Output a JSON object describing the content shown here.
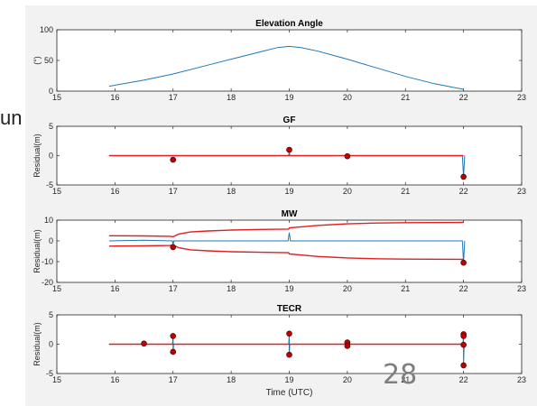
{
  "slide": {
    "side_text": "un",
    "page_number": "28"
  },
  "chart_data": [
    {
      "type": "line",
      "title": "Elevation Angle",
      "xlabel": "",
      "ylabel": "(°)",
      "xlim": [
        15,
        23
      ],
      "ylim": [
        0,
        100
      ],
      "xticks": [
        15,
        16,
        17,
        18,
        19,
        20,
        21,
        22,
        23
      ],
      "yticks": [
        0,
        50,
        100
      ],
      "grid": false,
      "series": [
        {
          "color": "#1f77b4",
          "x": [
            15.9,
            16.5,
            17,
            17.5,
            18,
            18.5,
            18.8,
            19,
            19.2,
            19.5,
            20,
            20.5,
            21,
            21.5,
            22
          ],
          "y": [
            8,
            18,
            28,
            40,
            52,
            64,
            71,
            73,
            71,
            65,
            52,
            38,
            24,
            12,
            3
          ]
        }
      ]
    },
    {
      "type": "line",
      "title": "GF",
      "xlabel": "",
      "ylabel": "Residual(m)",
      "xlim": [
        15,
        23
      ],
      "ylim": [
        -5,
        5
      ],
      "xticks": [
        15,
        16,
        17,
        18,
        19,
        20,
        21,
        22,
        23
      ],
      "yticks": [
        -5,
        0,
        5
      ],
      "grid": false,
      "series": [
        {
          "color": "#1f77b4",
          "x": [
            15.9,
            18.99,
            19.0,
            19.01,
            21.98,
            22.0,
            22.02
          ],
          "y": [
            0,
            0,
            1.0,
            0,
            0,
            -3.6,
            0
          ]
        },
        {
          "color": "#e02020",
          "x": [
            15.9,
            22.0
          ],
          "y": [
            0,
            0
          ]
        }
      ],
      "markers": {
        "color": "#c00000",
        "x": [
          17,
          19,
          20,
          22
        ],
        "y": [
          -0.7,
          1.0,
          -0.1,
          -3.6
        ]
      }
    },
    {
      "type": "line",
      "title": "MW",
      "xlabel": "",
      "ylabel": "Residual(m)",
      "xlim": [
        15,
        23
      ],
      "ylim": [
        -20,
        10
      ],
      "xticks": [
        15,
        16,
        17,
        18,
        19,
        20,
        21,
        22,
        23
      ],
      "yticks": [
        -20,
        -10,
        0,
        10
      ],
      "grid": false,
      "series": [
        {
          "color": "#1f77b4",
          "x": [
            15.9,
            16.5,
            16.99,
            17.0,
            17.01,
            18.98,
            19.0,
            19.02,
            21.98,
            22.0,
            22.02
          ],
          "y": [
            0,
            0.3,
            0,
            -3,
            0,
            0,
            4,
            0,
            0,
            -10.5,
            0
          ]
        },
        {
          "color": "#e02020",
          "x": [
            15.9,
            16.5,
            16.95,
            17.0,
            17.1,
            17.3,
            17.6,
            18.0,
            18.5,
            18.99,
            19.0,
            19.5,
            20,
            20.5,
            21,
            22.0
          ],
          "y": [
            2.5,
            2.4,
            2.2,
            2.0,
            3.3,
            4.3,
            4.8,
            5.2,
            5.5,
            5.7,
            6.3,
            7.5,
            8.2,
            8.6,
            8.8,
            8.9
          ]
        },
        {
          "color": "#e02020",
          "x": [
            15.9,
            16.5,
            16.95,
            17.0,
            17.1,
            17.3,
            17.6,
            18.0,
            18.5,
            18.99,
            19.0,
            19.5,
            20,
            20.5,
            21,
            22.0
          ],
          "y": [
            -2.5,
            -2.4,
            -2.2,
            -2.0,
            -3.3,
            -4.3,
            -4.8,
            -5.2,
            -5.5,
            -5.7,
            -6.3,
            -7.5,
            -8.2,
            -8.6,
            -8.8,
            -8.9
          ]
        }
      ],
      "markers": {
        "color": "#c00000",
        "x": [
          17,
          22
        ],
        "y": [
          -3,
          -10.5
        ]
      }
    },
    {
      "type": "line",
      "title": "TECR",
      "xlabel": "Time (UTC)",
      "ylabel": "Residual(m)",
      "xlim": [
        15,
        23
      ],
      "ylim": [
        -5,
        5
      ],
      "xticks": [
        15,
        16,
        17,
        18,
        19,
        20,
        21,
        22,
        23
      ],
      "yticks": [
        -5,
        0,
        5
      ],
      "grid": false,
      "series": [
        {
          "color": "#1f77b4",
          "x": [
            15.9,
            16.99,
            17.0,
            17.0,
            17.01,
            18.99,
            19.0,
            19.0,
            19.01,
            21.99,
            22.0,
            22.0,
            22.01
          ],
          "y": [
            0,
            0,
            1.4,
            -1.4,
            0,
            0,
            1.8,
            -1.8,
            0,
            0,
            1.8,
            -3.6,
            0
          ]
        },
        {
          "color": "#e02020",
          "x": [
            15.9,
            22.0
          ],
          "y": [
            0,
            0
          ]
        }
      ],
      "markers": {
        "color": "#c00000",
        "x": [
          16.5,
          17,
          17,
          19,
          19,
          20,
          20,
          22,
          22,
          22,
          22
        ],
        "y": [
          0.1,
          1.4,
          -1.3,
          1.8,
          -1.8,
          0.3,
          -0.3,
          1.7,
          1.4,
          -0.1,
          -3.6
        ]
      }
    }
  ]
}
